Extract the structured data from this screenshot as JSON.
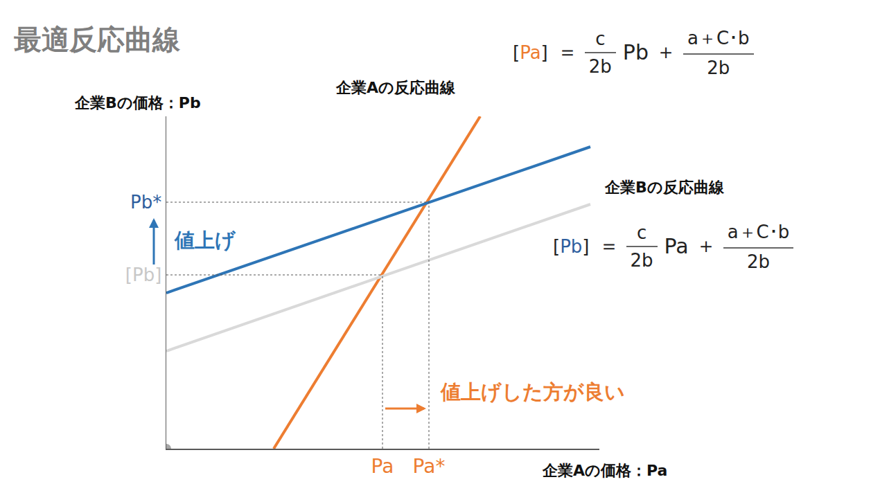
{
  "chart_data": {
    "type": "line",
    "title": "最適反応曲線",
    "x_label": "企業Aの価格：Pa",
    "y_label": "企業Bの価格：Pb",
    "xlim": [
      0,
      62.5
    ],
    "ylim": [
      0,
      48
    ],
    "xticks": [
      {
        "value": 31.2,
        "label": "Pa"
      },
      {
        "value": 37.9,
        "label": "Pa*"
      }
    ],
    "yticks": [
      {
        "value": 25.1,
        "label": "[Pb]"
      },
      {
        "value": 35.6,
        "label": "Pb*"
      }
    ],
    "grid": false,
    "series": [
      {
        "name": "企業Aの反応曲線",
        "color": "#ED7D31",
        "x": [
          15.5,
          45.3
        ],
        "values": [
          0,
          48
        ]
      },
      {
        "name": "企業Bの反応曲線",
        "color": "#D9D9D9",
        "x": [
          0,
          61.2
        ],
        "values": [
          14.1,
          35.3
        ]
      },
      {
        "color": "#2E75B6",
        "x": [
          0,
          61.2
        ],
        "values": [
          22.5,
          43.6
        ]
      }
    ],
    "equations": [
      {
        "lhs": [
          "[",
          "Pa",
          "]"
        ],
        "eq": "＝",
        "coef": {
          "num": "c",
          "den": "2b"
        },
        "var": "Pb",
        "plus": "＋",
        "const": {
          "num": "a＋C･b",
          "den": "2b"
        }
      },
      {
        "lhs": [
          "[",
          "Pb",
          "]"
        ],
        "eq": "＝",
        "coef": {
          "num": "c",
          "den": "2b"
        },
        "var": "Pa",
        "plus": "＋",
        "const": {
          "num": "a＋C･b",
          "den": "2b"
        }
      }
    ],
    "annotations": [
      {
        "text": "値上げ",
        "color": "#2E75B6"
      },
      {
        "text": "値上げした方が良い",
        "color": "#ED7D31"
      }
    ]
  }
}
